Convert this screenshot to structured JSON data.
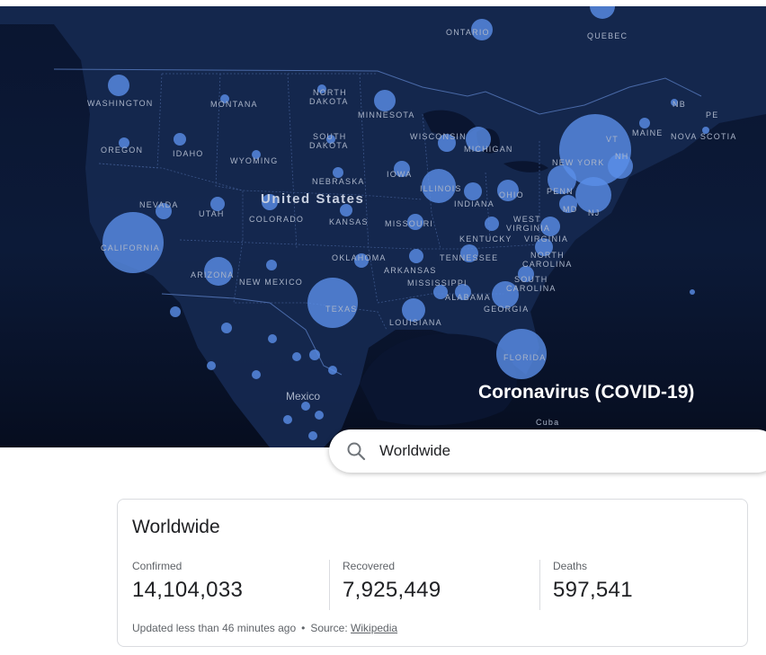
{
  "map": {
    "title": "Coronavirus (COVID-19)",
    "country_labels": [
      "United States",
      "Mexico",
      "Cuba"
    ],
    "region_labels": [
      "ONTARIO",
      "QUEBEC",
      "WASHINGTON",
      "MONTANA",
      "NORTH DAKOTA",
      "MINNESOTA",
      "OREGON",
      "IDAHO",
      "WYOMING",
      "SOUTH DAKOTA",
      "WISCONSIN",
      "MICHIGAN",
      "NEW YORK",
      "NB",
      "PE",
      "MAINE",
      "NOVA SCOTIA",
      "NEBRASKA",
      "IOWA",
      "ILLINOIS",
      "INDIANA",
      "OHIO",
      "PENN",
      "NEVADA",
      "UTAH",
      "COLORADO",
      "KANSAS",
      "MISSOURI",
      "WEST VIRGINIA",
      "VIRGINIA",
      "MD",
      "NJ",
      "VT",
      "NH",
      "CALIFORNIA",
      "KENTUCKY",
      "TENNESSEE",
      "NORTH CAROLINA",
      "OKLAHOMA",
      "ARKANSAS",
      "ARIZONA",
      "NEW MEXICO",
      "MISSISSIPPI",
      "ALABAMA",
      "GEORGIA",
      "SOUTH CAROLINA",
      "TEXAS",
      "LOUISIANA",
      "FLORIDA"
    ],
    "accent_color": "#5a8fe8"
  },
  "search": {
    "value": "Worldwide",
    "icon": "search-icon"
  },
  "stats": {
    "title": "Worldwide",
    "confirmed": {
      "label": "Confirmed",
      "value": "14,104,033"
    },
    "recovered": {
      "label": "Recovered",
      "value": "7,925,449"
    },
    "deaths": {
      "label": "Deaths",
      "value": "597,541"
    },
    "updated": "Updated less than 46 minutes ago",
    "source_label": "Source:",
    "source_link": "Wikipedia"
  }
}
